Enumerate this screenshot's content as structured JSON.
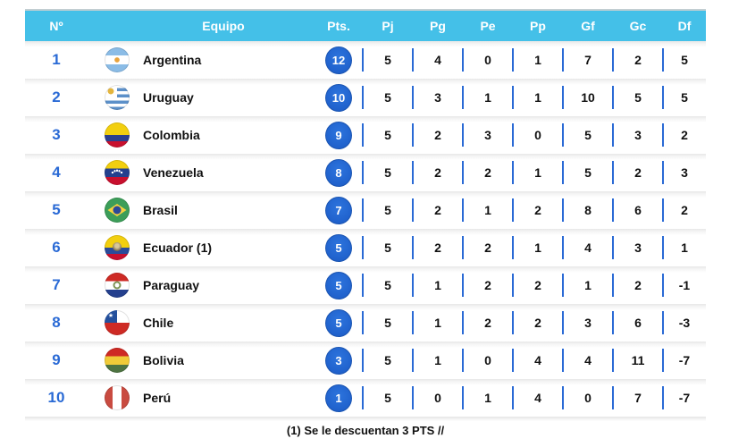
{
  "table": {
    "columns": [
      "Nº",
      "Equipo",
      "Pts.",
      "Pj",
      "Pg",
      "Pe",
      "Pp",
      "Gf",
      "Gc",
      "Df"
    ],
    "rows": [
      {
        "pos": "1",
        "flag": "argentina",
        "team": "Argentina",
        "pts": "12",
        "pj": "5",
        "pg": "4",
        "pe": "0",
        "pp": "1",
        "gf": "7",
        "gc": "2",
        "df": "5"
      },
      {
        "pos": "2",
        "flag": "uruguay",
        "team": "Uruguay",
        "pts": "10",
        "pj": "5",
        "pg": "3",
        "pe": "1",
        "pp": "1",
        "gf": "10",
        "gc": "5",
        "df": "5"
      },
      {
        "pos": "3",
        "flag": "colombia",
        "team": "Colombia",
        "pts": "9",
        "pj": "5",
        "pg": "2",
        "pe": "3",
        "pp": "0",
        "gf": "5",
        "gc": "3",
        "df": "2"
      },
      {
        "pos": "4",
        "flag": "venezuela",
        "team": "Venezuela",
        "pts": "8",
        "pj": "5",
        "pg": "2",
        "pe": "2",
        "pp": "1",
        "gf": "5",
        "gc": "2",
        "df": "3"
      },
      {
        "pos": "5",
        "flag": "brasil",
        "team": "Brasil",
        "pts": "7",
        "pj": "5",
        "pg": "2",
        "pe": "1",
        "pp": "2",
        "gf": "8",
        "gc": "6",
        "df": "2"
      },
      {
        "pos": "6",
        "flag": "ecuador",
        "team": "Ecuador (1)",
        "pts": "5",
        "pj": "5",
        "pg": "2",
        "pe": "2",
        "pp": "1",
        "gf": "4",
        "gc": "3",
        "df": "1"
      },
      {
        "pos": "7",
        "flag": "paraguay",
        "team": "Paraguay",
        "pts": "5",
        "pj": "5",
        "pg": "1",
        "pe": "2",
        "pp": "2",
        "gf": "1",
        "gc": "2",
        "df": "-1"
      },
      {
        "pos": "8",
        "flag": "chile",
        "team": "Chile",
        "pts": "5",
        "pj": "5",
        "pg": "1",
        "pe": "2",
        "pp": "2",
        "gf": "3",
        "gc": "6",
        "df": "-3"
      },
      {
        "pos": "9",
        "flag": "bolivia",
        "team": "Bolivia",
        "pts": "3",
        "pj": "5",
        "pg": "1",
        "pe": "0",
        "pp": "4",
        "gf": "4",
        "gc": "11",
        "df": "-7"
      },
      {
        "pos": "10",
        "flag": "peru",
        "team": "Perú",
        "pts": "1",
        "pj": "5",
        "pg": "0",
        "pe": "1",
        "pp": "4",
        "gf": "0",
        "gc": "7",
        "df": "-7"
      }
    ]
  },
  "footnote": "(1) Se le descuentan 3 PTS //",
  "colors": {
    "header_bg": "#44C0E8",
    "accent_blue": "#2A6AD5",
    "badge_bg": "#2062CD",
    "text": "#111111"
  }
}
